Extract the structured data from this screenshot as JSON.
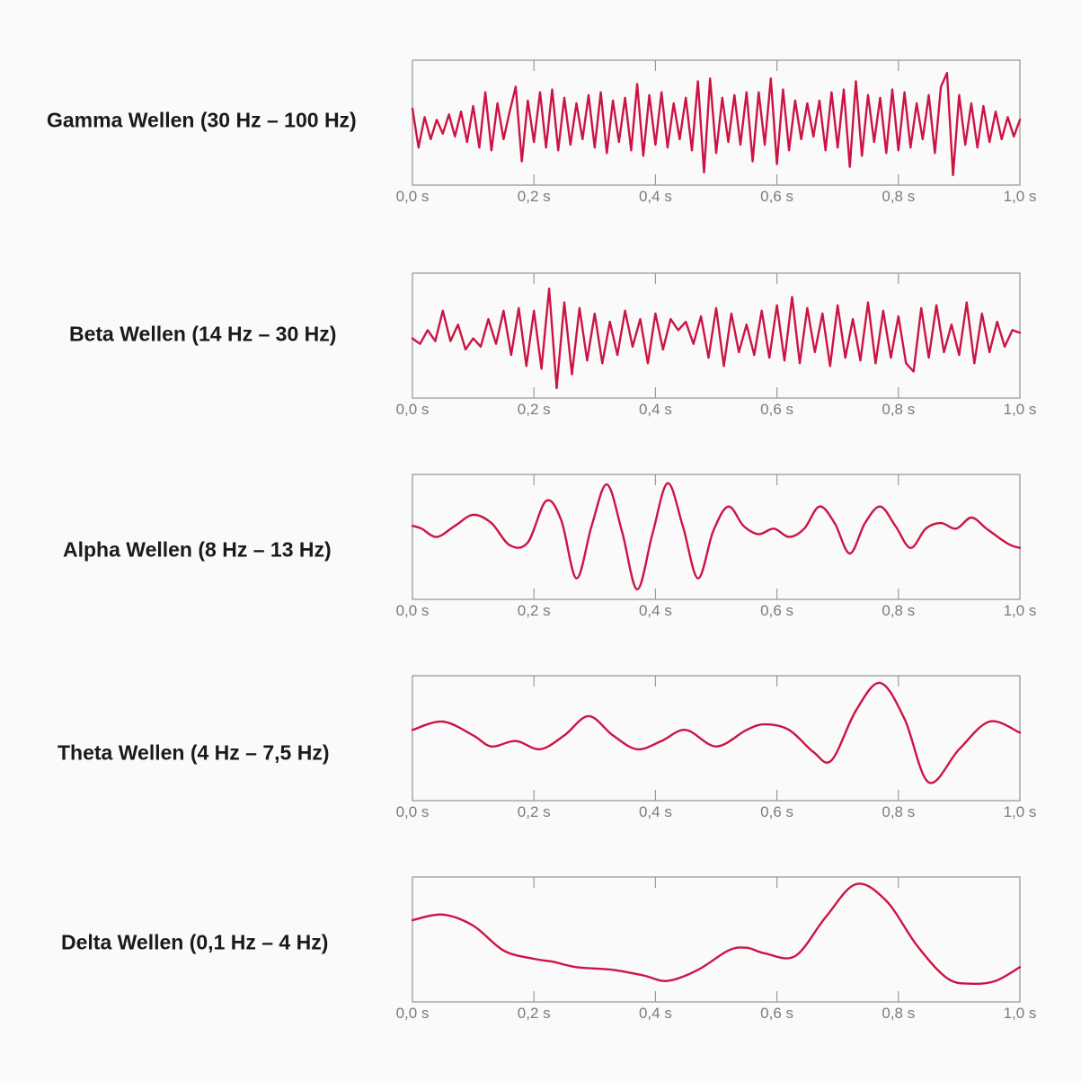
{
  "colors": {
    "line": "#cc1444",
    "frame": "#9a9a9a",
    "tick_text": "#7b7b7b",
    "label": "#1a1a1a",
    "background": "#fafafa"
  },
  "chart_data": [
    {
      "type": "line",
      "title": "Gamma Wellen (30 Hz – 100 Hz)",
      "xlabel": "",
      "ylabel": "",
      "xlim": [
        0,
        1.0
      ],
      "ylim": [
        -1,
        1
      ],
      "x_tick_labels": [
        "0,0 s",
        "0,2 s",
        "0,4 s",
        "0,6 s",
        "0,8 s",
        "1,0 s"
      ],
      "y_axis_shown": false,
      "grid": false,
      "series": [
        {
          "x": [
            0.0,
            0.01,
            0.02,
            0.03,
            0.04,
            0.05,
            0.06,
            0.07,
            0.08,
            0.09,
            0.1,
            0.11,
            0.12,
            0.13,
            0.14,
            0.15,
            0.16,
            0.17,
            0.18,
            0.19,
            0.2,
            0.21,
            0.22,
            0.23,
            0.24,
            0.25,
            0.26,
            0.27,
            0.28,
            0.29,
            0.3,
            0.31,
            0.32,
            0.33,
            0.34,
            0.35,
            0.36,
            0.37,
            0.38,
            0.39,
            0.4,
            0.41,
            0.42,
            0.43,
            0.44,
            0.45,
            0.46,
            0.47,
            0.48,
            0.49,
            0.5,
            0.51,
            0.52,
            0.53,
            0.54,
            0.55,
            0.56,
            0.57,
            0.58,
            0.59,
            0.6,
            0.61,
            0.62,
            0.63,
            0.64,
            0.65,
            0.66,
            0.67,
            0.68,
            0.69,
            0.7,
            0.71,
            0.72,
            0.73,
            0.74,
            0.75,
            0.76,
            0.77,
            0.78,
            0.79,
            0.8,
            0.81,
            0.82,
            0.83,
            0.84,
            0.85,
            0.86,
            0.87,
            0.88,
            0.89,
            0.9,
            0.91,
            0.92,
            0.93,
            0.94,
            0.95,
            0.96,
            0.97,
            0.98,
            0.99,
            1.0
          ],
          "y": [
            0.25,
            -0.45,
            0.1,
            -0.3,
            0.05,
            -0.2,
            0.15,
            -0.25,
            0.2,
            -0.35,
            0.3,
            -0.45,
            0.55,
            -0.5,
            0.35,
            -0.3,
            0.2,
            0.65,
            -0.7,
            0.4,
            -0.35,
            0.55,
            -0.45,
            0.6,
            -0.5,
            0.45,
            -0.4,
            0.35,
            -0.3,
            0.5,
            -0.45,
            0.55,
            -0.55,
            0.4,
            -0.35,
            0.45,
            -0.5,
            0.7,
            -0.6,
            0.5,
            -0.4,
            0.55,
            -0.45,
            0.35,
            -0.3,
            0.45,
            -0.5,
            0.75,
            -0.9,
            0.8,
            -0.55,
            0.45,
            -0.35,
            0.5,
            -0.4,
            0.55,
            -0.7,
            0.55,
            -0.4,
            0.8,
            -0.75,
            0.6,
            -0.5,
            0.4,
            -0.3,
            0.35,
            -0.25,
            0.4,
            -0.5,
            0.55,
            -0.45,
            0.6,
            -0.8,
            0.75,
            -0.6,
            0.5,
            -0.35,
            0.45,
            -0.55,
            0.6,
            -0.5,
            0.55,
            -0.45,
            0.35,
            -0.3,
            0.5,
            -0.55,
            0.65,
            0.9,
            -0.95,
            0.5,
            -0.4,
            0.35,
            -0.45,
            0.3,
            -0.35,
            0.2,
            -0.3,
            0.1,
            -0.25,
            0.05
          ]
        }
      ]
    },
    {
      "type": "line",
      "title": "Beta Wellen (14 Hz – 30 Hz)",
      "xlabel": "",
      "ylabel": "",
      "xlim": [
        0,
        1.0
      ],
      "ylim": [
        -1,
        1
      ],
      "x_tick_labels": [
        "0,0 s",
        "0,2 s",
        "0,4 s",
        "0,6 s",
        "0,8 s",
        "1,0 s"
      ],
      "y_axis_shown": false,
      "grid": false,
      "series": [
        {
          "x": [
            0.0,
            0.0125,
            0.025,
            0.0375,
            0.05,
            0.0625,
            0.075,
            0.0875,
            0.1,
            0.1125,
            0.125,
            0.1375,
            0.15,
            0.1625,
            0.175,
            0.1875,
            0.2,
            0.2125,
            0.225,
            0.2375,
            0.25,
            0.2625,
            0.275,
            0.2875,
            0.3,
            0.3125,
            0.325,
            0.3375,
            0.35,
            0.3625,
            0.375,
            0.3875,
            0.4,
            0.4125,
            0.425,
            0.4375,
            0.45,
            0.4625,
            0.475,
            0.4875,
            0.5,
            0.5125,
            0.525,
            0.5375,
            0.55,
            0.5625,
            0.575,
            0.5875,
            0.6,
            0.6125,
            0.625,
            0.6375,
            0.65,
            0.6625,
            0.675,
            0.6875,
            0.7,
            0.7125,
            0.725,
            0.7375,
            0.75,
            0.7625,
            0.775,
            0.7875,
            0.8,
            0.8125,
            0.825,
            0.8375,
            0.85,
            0.8625,
            0.875,
            0.8875,
            0.9,
            0.9125,
            0.925,
            0.9375,
            0.95,
            0.9625,
            0.975,
            0.9875,
            1.0
          ],
          "y": [
            -0.05,
            -0.15,
            0.1,
            -0.1,
            0.45,
            -0.1,
            0.2,
            -0.25,
            -0.05,
            -0.2,
            0.3,
            -0.15,
            0.45,
            -0.35,
            0.5,
            -0.55,
            0.45,
            -0.6,
            0.85,
            -0.95,
            0.6,
            -0.7,
            0.5,
            -0.45,
            0.4,
            -0.5,
            0.25,
            -0.35,
            0.45,
            -0.2,
            0.3,
            -0.5,
            0.4,
            -0.25,
            0.3,
            0.1,
            0.25,
            -0.15,
            0.35,
            -0.4,
            0.5,
            -0.55,
            0.4,
            -0.3,
            0.2,
            -0.35,
            0.45,
            -0.4,
            0.55,
            -0.45,
            0.7,
            -0.5,
            0.5,
            -0.3,
            0.4,
            -0.55,
            0.55,
            -0.4,
            0.3,
            -0.45,
            0.6,
            -0.5,
            0.45,
            -0.4,
            0.35,
            -0.5,
            -0.65,
            0.5,
            -0.4,
            0.55,
            -0.3,
            0.2,
            -0.35,
            0.6,
            -0.5,
            0.4,
            -0.3,
            0.25,
            -0.2,
            0.1,
            0.05
          ]
        }
      ]
    },
    {
      "type": "line",
      "title": "Alpha Wellen (8 Hz – 13 Hz)",
      "xlabel": "",
      "ylabel": "",
      "xlim": [
        0,
        1.0
      ],
      "ylim": [
        -1,
        1
      ],
      "x_tick_labels": [
        "0,0 s",
        "0,2 s",
        "0,4 s",
        "0,6 s",
        "0,8 s",
        "1,0 s"
      ],
      "y_axis_shown": false,
      "grid": false,
      "series": [
        {
          "x": [
            0.0,
            0.015,
            0.04,
            0.07,
            0.1,
            0.13,
            0.16,
            0.19,
            0.22,
            0.245,
            0.27,
            0.295,
            0.32,
            0.345,
            0.37,
            0.395,
            0.42,
            0.445,
            0.47,
            0.495,
            0.52,
            0.545,
            0.57,
            0.595,
            0.62,
            0.645,
            0.67,
            0.695,
            0.72,
            0.745,
            0.77,
            0.795,
            0.82,
            0.845,
            0.87,
            0.895,
            0.92,
            0.945,
            0.97,
            0.985,
            1.0
          ],
          "y": [
            0.2,
            0.15,
            0.0,
            0.2,
            0.4,
            0.25,
            -0.15,
            -0.1,
            0.65,
            0.3,
            -0.75,
            0.2,
            0.95,
            0.1,
            -0.95,
            0.05,
            0.97,
            0.2,
            -0.75,
            0.1,
            0.55,
            0.2,
            0.05,
            0.15,
            0.0,
            0.15,
            0.55,
            0.25,
            -0.3,
            0.25,
            0.55,
            0.2,
            -0.2,
            0.15,
            0.25,
            0.15,
            0.35,
            0.15,
            -0.05,
            -0.15,
            -0.2
          ]
        }
      ]
    },
    {
      "type": "line",
      "title": "Theta Wellen (4 Hz – 7,5 Hz)",
      "xlabel": "",
      "ylabel": "",
      "xlim": [
        0,
        1.0
      ],
      "ylim": [
        -1,
        1
      ],
      "x_tick_labels": [
        "0,0 s",
        "0,2 s",
        "0,4 s",
        "0,6 s",
        "0,8 s",
        "1,0 s"
      ],
      "y_axis_shown": false,
      "grid": false,
      "series": [
        {
          "x": [
            0.0,
            0.05,
            0.1,
            0.13,
            0.17,
            0.21,
            0.25,
            0.29,
            0.33,
            0.37,
            0.41,
            0.45,
            0.5,
            0.55,
            0.58,
            0.62,
            0.66,
            0.69,
            0.73,
            0.77,
            0.81,
            0.85,
            0.9,
            0.95,
            1.0
          ],
          "y": [
            0.15,
            0.3,
            0.05,
            -0.15,
            -0.05,
            -0.2,
            0.05,
            0.4,
            0.05,
            -0.2,
            -0.05,
            0.15,
            -0.15,
            0.15,
            0.25,
            0.15,
            -0.25,
            -0.4,
            0.5,
            1.0,
            0.35,
            -0.8,
            -0.2,
            0.3,
            0.1
          ]
        }
      ]
    },
    {
      "type": "line",
      "title": "Delta Wellen (0,1 Hz – 4 Hz)",
      "xlabel": "",
      "ylabel": "",
      "xlim": [
        0,
        1.0
      ],
      "ylim": [
        -1,
        1
      ],
      "x_tick_labels": [
        "0,0 s",
        "0,2 s",
        "0,4 s",
        "0,6 s",
        "0,8 s",
        "1,0 s"
      ],
      "y_axis_shown": false,
      "grid": false,
      "series": [
        {
          "x": [
            0.0,
            0.05,
            0.1,
            0.15,
            0.2,
            0.23,
            0.27,
            0.33,
            0.38,
            0.42,
            0.47,
            0.52,
            0.55,
            0.58,
            0.63,
            0.68,
            0.73,
            0.78,
            0.83,
            0.88,
            0.92,
            0.96,
            1.0
          ],
          "y": [
            0.35,
            0.45,
            0.25,
            -0.2,
            -0.35,
            -0.4,
            -0.5,
            -0.55,
            -0.65,
            -0.75,
            -0.55,
            -0.2,
            -0.15,
            -0.25,
            -0.3,
            0.4,
            1.0,
            0.7,
            -0.1,
            -0.7,
            -0.8,
            -0.75,
            -0.5
          ]
        }
      ]
    }
  ]
}
